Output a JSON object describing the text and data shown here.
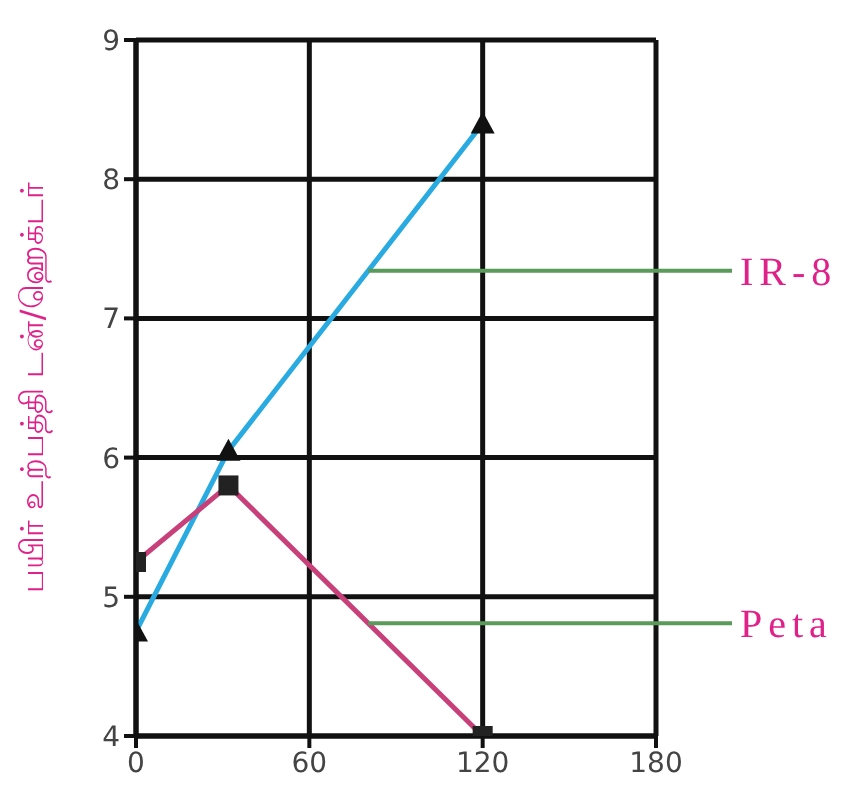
{
  "chart_data": {
    "type": "line",
    "ylabel": "பயிர் உற்பத்தி டன்/ஹெக்டர்",
    "xlim": [
      0,
      180
    ],
    "xticks": [
      0,
      60,
      120,
      180
    ],
    "ylim": [
      4,
      9
    ],
    "yticks": [
      4,
      5,
      6,
      7,
      8,
      9
    ],
    "grid": true,
    "legend": false,
    "line_style": "solid",
    "series": [
      {
        "name": "IR-8",
        "color": "#29abe2",
        "marker": "triangle",
        "x": [
          0,
          32,
          120
        ],
        "values": [
          4.75,
          6.05,
          8.4
        ]
      },
      {
        "name": "Peta",
        "color": "#c8407a",
        "marker": "square",
        "x": [
          0,
          32,
          120
        ],
        "values": [
          5.25,
          5.8,
          4.0
        ]
      }
    ]
  }
}
